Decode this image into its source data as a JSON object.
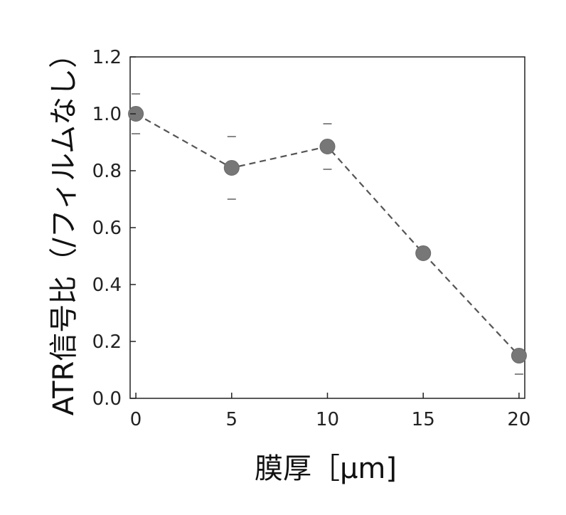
{
  "chart_data": {
    "type": "scatter",
    "xlabel": "膜厚［μm]",
    "ylabel": "ATR信号比（/フィルムなし）",
    "xlim": [
      -0.3,
      20.3
    ],
    "ylim": [
      0.0,
      1.2
    ],
    "x_ticks": [
      "0",
      "5",
      "10",
      "15",
      "20"
    ],
    "y_ticks": [
      "0.0",
      "0.2",
      "0.4",
      "0.6",
      "0.8",
      "1.0",
      "1.2"
    ],
    "x_tick_values": [
      0,
      5,
      10,
      15,
      20
    ],
    "y_tick_values": [
      0.0,
      0.2,
      0.4,
      0.6,
      0.8,
      1.0,
      1.2
    ],
    "grid": false,
    "series": [
      {
        "x": [
          0,
          5,
          10,
          15,
          20
        ],
        "y": [
          1.0,
          0.81,
          0.885,
          0.51,
          0.15
        ],
        "error_upper": [
          1.07,
          0.92,
          0.965,
          null,
          null
        ],
        "error_lower": [
          0.93,
          0.7,
          0.805,
          null,
          0.085
        ],
        "line_style": "dashed",
        "marker": "circle",
        "color": "#777777",
        "line_color": "#555555"
      }
    ]
  }
}
